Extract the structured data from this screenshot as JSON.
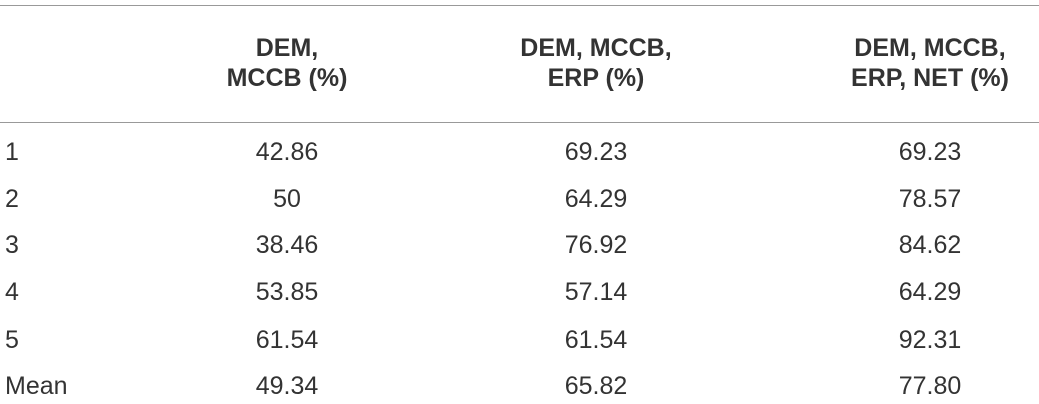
{
  "table": {
    "header": [
      [
        "DEM,",
        "MCCB (%)"
      ],
      [
        "DEM, MCCB,",
        "ERP (%)"
      ],
      [
        "DEM, MCCB,",
        "ERP, NET (%)"
      ]
    ],
    "rows": [
      [
        "1",
        "42.86",
        "69.23",
        "69.23"
      ],
      [
        "2",
        "50",
        "64.29",
        "78.57"
      ],
      [
        "3",
        "38.46",
        "76.92",
        "84.62"
      ],
      [
        "4",
        "53.85",
        "57.14",
        "64.29"
      ],
      [
        "5",
        "61.54",
        "61.54",
        "92.31"
      ],
      [
        "Mean",
        "49.34",
        "65.82",
        "77.80"
      ]
    ]
  }
}
